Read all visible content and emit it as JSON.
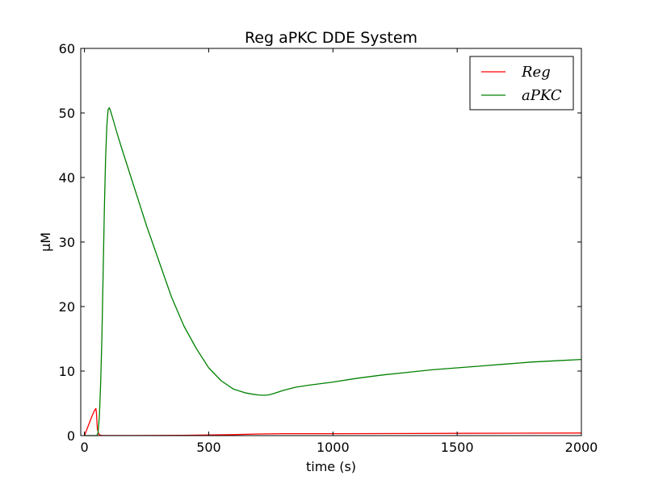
{
  "chart_data": {
    "type": "line",
    "title": "Reg aPKC DDE System",
    "xlabel": "time (s)",
    "ylabel": "μM",
    "xlim": [
      -15,
      2000
    ],
    "ylim": [
      0,
      60
    ],
    "xticks": [
      0,
      500,
      1000,
      1500,
      2000
    ],
    "yticks": [
      0,
      10,
      20,
      30,
      40,
      50,
      60
    ],
    "grid": false,
    "legend_position": "top-right",
    "series": [
      {
        "name": "Reg",
        "color": "#ff0000",
        "x": [
          0,
          10,
          20,
          30,
          38,
          42,
          46,
          48,
          52,
          58,
          65,
          75,
          100,
          200,
          400,
          600,
          700,
          800,
          1000,
          1500,
          2000
        ],
        "y": [
          0,
          1.0,
          2.0,
          3.0,
          3.7,
          4.0,
          4.2,
          3.6,
          1.0,
          0.2,
          0.05,
          0.02,
          0.02,
          0.02,
          0.05,
          0.15,
          0.25,
          0.3,
          0.3,
          0.35,
          0.4
        ]
      },
      {
        "name": "aPKC",
        "color": "#008000",
        "x": [
          0,
          50,
          55,
          60,
          65,
          70,
          75,
          80,
          85,
          90,
          95,
          100,
          105,
          115,
          130,
          150,
          200,
          250,
          300,
          350,
          400,
          450,
          500,
          550,
          600,
          650,
          680,
          700,
          720,
          740,
          760,
          800,
          850,
          900,
          1000,
          1100,
          1200,
          1300,
          1400,
          1500,
          1600,
          1700,
          1800,
          1900,
          2000
        ],
        "y": [
          0,
          0,
          0.5,
          3,
          8,
          15,
          25,
          35,
          43,
          48,
          50.5,
          50.8,
          50.3,
          49,
          47,
          44.5,
          38.5,
          32.5,
          27,
          21.5,
          17,
          13.5,
          10.5,
          8.5,
          7.2,
          6.6,
          6.4,
          6.3,
          6.25,
          6.3,
          6.5,
          7,
          7.5,
          7.8,
          8.3,
          8.9,
          9.4,
          9.8,
          10.2,
          10.5,
          10.8,
          11.1,
          11.4,
          11.6,
          11.8
        ]
      }
    ]
  }
}
